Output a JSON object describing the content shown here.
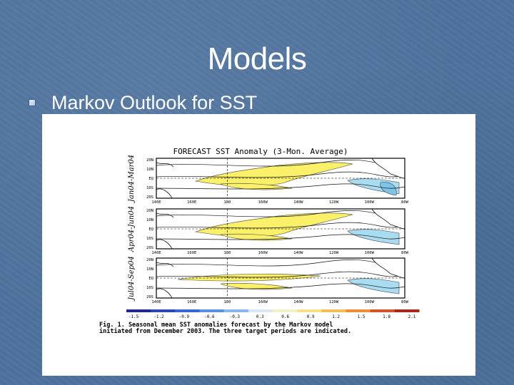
{
  "slide": {
    "title": "Models",
    "bullets": [
      {
        "text": "Markov Outlook for SST"
      }
    ]
  },
  "figure": {
    "heading": "FORECAST SST Anomaly (3-Mon. Average)",
    "panels": [
      {
        "period": "Jan04-Mar04",
        "lat_labels": [
          "20N",
          "10N",
          "EQ",
          "10S",
          "20S"
        ]
      },
      {
        "period": "Apr04-Jun04",
        "lat_labels": [
          "20N",
          "10N",
          "EQ",
          "10S",
          "20S"
        ]
      },
      {
        "period": "Jul04-Sep04",
        "lat_labels": [
          "20N",
          "10N",
          "EQ",
          "10S",
          "20S"
        ]
      }
    ],
    "lon_labels": [
      "140E",
      "160E",
      "180",
      "160W",
      "140W",
      "120W",
      "100W",
      "80W"
    ],
    "colorbar_ticks": [
      "-1.5",
      "-1.2",
      "-0.9",
      "-0.6",
      "-0.3",
      "0.3",
      "0.6",
      "0.9",
      "1.2",
      "1.5",
      "1.8",
      "2.1"
    ],
    "caption_line1": "Fig. 1. Seasonal mean SST anomalies forecast by the Markov model",
    "caption_line2": "initiated from December 2003. The three target periods are indicated.",
    "colors": {
      "warm_fill": "#fbf06a",
      "cool_fill": "#a9dcf0",
      "deep_cool_fill": "#7cc4e8"
    }
  }
}
